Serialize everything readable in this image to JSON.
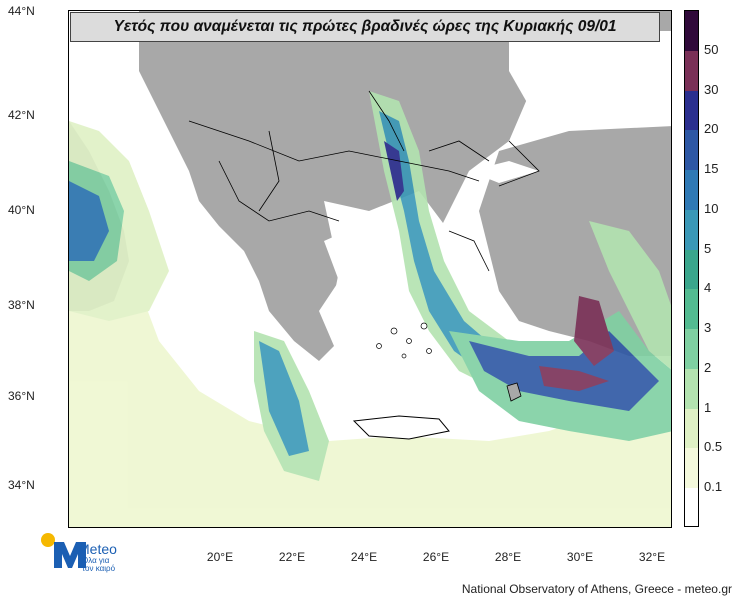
{
  "title": "Υετός που αναμένεται τις πρώτες βραδινές ώρες της Κυριακής 09/01",
  "latitude_labels": [
    "44°N",
    "42°N",
    "40°N",
    "38°N",
    "36°N",
    "34°N"
  ],
  "longitude_labels": [
    "20°E",
    "22°E",
    "24°E",
    "26°E",
    "28°E",
    "30°E",
    "32°E"
  ],
  "legend": {
    "labels": [
      "50",
      "30",
      "20",
      "15",
      "10",
      "5",
      "4",
      "3",
      "2",
      "1",
      "0.5",
      "0.1"
    ],
    "colors": [
      "#300a3a",
      "#7a3057",
      "#2b2f8f",
      "#2d57a4",
      "#2f79b5",
      "#3a98b7",
      "#3aa68c",
      "#53bb91",
      "#7fd0a2",
      "#b3e3b0",
      "#dff1c5",
      "#f4f9dc",
      "#ffffff"
    ]
  },
  "colors": {
    "land": "#a8a8a8",
    "sea": "#ffffff",
    "border": "#000000"
  },
  "brand": {
    "name": "Meteo",
    "tagline_1": "Όλα για",
    "tagline_2": "τον καιρό"
  },
  "credit": "National Observatory of Athens, Greece - meteo.gr"
}
